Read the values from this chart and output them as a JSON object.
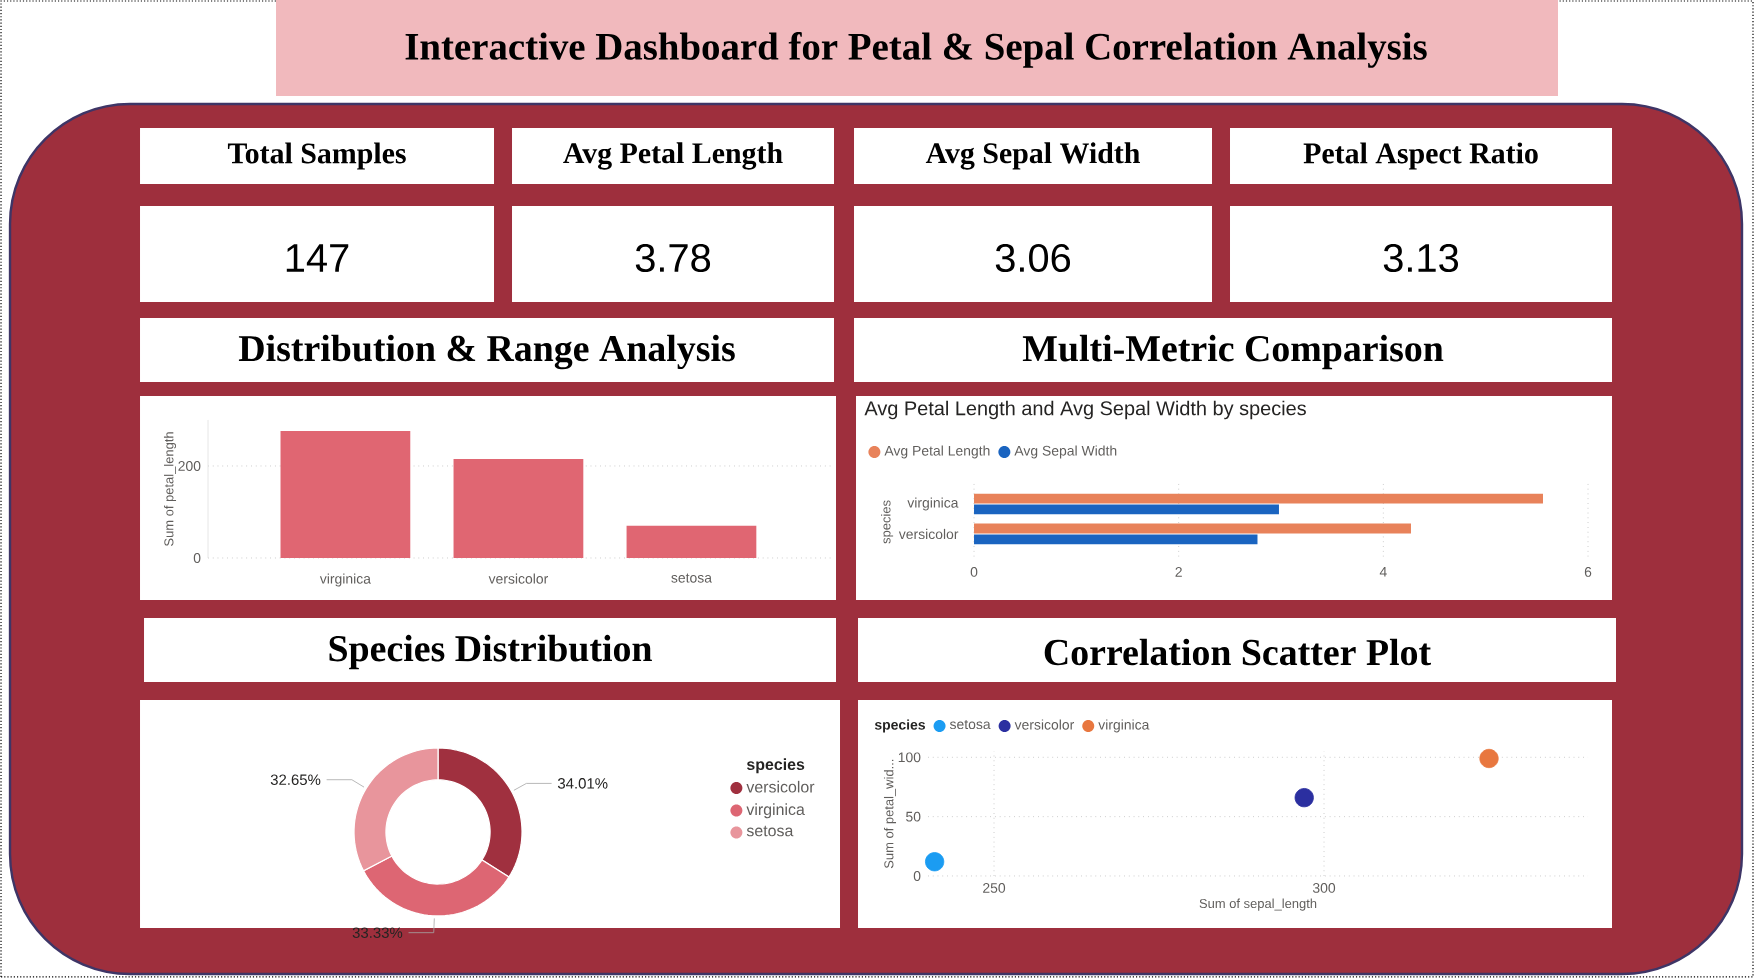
{
  "chart_data": [
    {
      "type": "other",
      "title": "Interactive Dashboard for Petal & Sepal Correlation Analysis",
      "categories": [
        "Total Samples",
        "Avg Petal Length",
        "Avg Sepal Width",
        "Petal Aspect Ratio"
      ],
      "values": [
        147,
        3.78,
        3.06,
        3.13
      ],
      "data_labels": true
    },
    {
      "type": "bar",
      "title": "Distribution & Range Analysis",
      "ylabel": "Sum of petal_length",
      "categories": [
        "virginica",
        "versicolor",
        "setosa"
      ],
      "values": [
        276,
        215,
        70
      ],
      "color": "#e06672",
      "ylim": [
        0,
        300
      ],
      "yticks": [
        0,
        200
      ],
      "grid": "y"
    },
    {
      "type": "bar",
      "orientation": "horizontal",
      "title": "Multi-Metric Comparison",
      "subtitle": "Avg Petal Length and Avg Sepal Width by species",
      "ylabel": "species",
      "categories": [
        "virginica",
        "versicolor"
      ],
      "series": [
        {
          "name": "Avg Petal Length",
          "color": "#e8825a",
          "values": [
            5.56,
            4.27
          ]
        },
        {
          "name": "Avg Sepal Width",
          "color": "#1a64c0",
          "values": [
            2.98,
            2.77
          ]
        }
      ],
      "xlim": [
        0,
        6
      ],
      "xticks": [
        0,
        2,
        4,
        6
      ],
      "grid": "x",
      "legend": "top left"
    },
    {
      "type": "donut",
      "title": "Species Distribution",
      "legend_title": "species",
      "categories": [
        "versicolor",
        "virginica",
        "setosa"
      ],
      "values": [
        34.01,
        33.33,
        32.65
      ],
      "colors": [
        "#a0303f",
        "#dd6673",
        "#e8959c"
      ],
      "value_labels": [
        "34.01%",
        "33.33%",
        "32.65%"
      ],
      "legend": "right"
    },
    {
      "type": "scatter",
      "title": "Correlation Scatter Plot",
      "xlabel": "Sum of sepal_length",
      "ylabel": "Sum of petal_wid...",
      "legend_title": "species",
      "series": [
        {
          "name": "setosa",
          "color": "#1b9cf2",
          "x": [
            241
          ],
          "values": [
            12
          ]
        },
        {
          "name": "versicolor",
          "color": "#2b2fa0",
          "x": [
            297
          ],
          "values": [
            66
          ]
        },
        {
          "name": "virginica",
          "color": "#e8773f",
          "x": [
            325
          ],
          "values": [
            99
          ]
        }
      ],
      "xlim": [
        240,
        340
      ],
      "xticks": [
        250,
        300
      ],
      "ylim": [
        0,
        105
      ],
      "yticks": [
        0,
        50,
        100
      ],
      "grid": true,
      "legend": "top left"
    }
  ]
}
